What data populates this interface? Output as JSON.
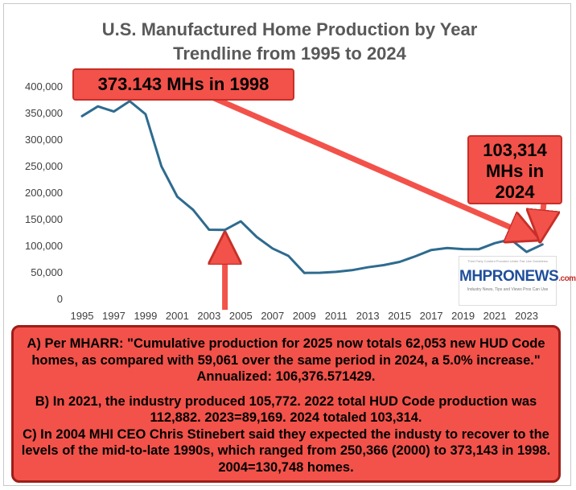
{
  "chart_data": {
    "type": "line",
    "title": [
      "U.S. Manufactured Home Production by Year",
      "Trendline from 1995 to 2024"
    ],
    "xlabel": "",
    "ylabel": "",
    "ylim": [
      0,
      400000
    ],
    "yticks": [
      0,
      50000,
      100000,
      150000,
      200000,
      250000,
      300000,
      350000,
      400000
    ],
    "ytick_labels": [
      "0",
      "50,000",
      "100,000",
      "150,000",
      "200,000",
      "250,000",
      "300,000",
      "350,000",
      "400,000"
    ],
    "xtick_labels": [
      "1995",
      "1997",
      "1999",
      "2001",
      "2003",
      "2005",
      "2007",
      "2009",
      "2011",
      "2013",
      "2015",
      "2017",
      "2019",
      "2021",
      "2023"
    ],
    "x": [
      1995,
      1996,
      1997,
      1998,
      1999,
      2000,
      2001,
      2002,
      2003,
      2004,
      2005,
      2006,
      2007,
      2008,
      2009,
      2010,
      2011,
      2012,
      2013,
      2014,
      2015,
      2016,
      2017,
      2018,
      2019,
      2020,
      2021,
      2022,
      2023,
      2024
    ],
    "series": [
      {
        "name": "",
        "color": "#2e6b8f",
        "values": [
          344930,
          363345,
          353686,
          373143,
          348671,
          250366,
          193229,
          168491,
          131000,
          130748,
          146744,
          117373,
          95752,
          81889,
          49683,
          50046,
          51606,
          54881,
          60228,
          64334,
          70519,
          81136,
          92891,
          96555,
          94615,
          94390,
          105772,
          112882,
          89169,
          103314
        ]
      }
    ],
    "grid": false,
    "legend": "none",
    "annotations": [
      {
        "text": "373.143 MHs in 1998",
        "points_to": {
          "x": 1998,
          "y": 373143
        }
      },
      {
        "text": [
          "103,314",
          "MHs in",
          "2024"
        ],
        "points_to": {
          "x": 2024,
          "y": 103314
        }
      }
    ],
    "arrow_color": "#f2524a"
  },
  "logo": {
    "tagline": "Third Party Content Provided Under Fair Use Guidelines",
    "name_left": "MHPRO",
    "name_right": "NEWS",
    "suffix": ".com",
    "subtitle": "Industry News, Tips and Views Pros Can Use"
  },
  "notes": {
    "a": "A) Per MHARR: \"Cumulative production for 2025 now totals 62,053 new HUD Code homes, as compared with 59,061 over the same period in 2024, a 5.0% increase.\" Annualized: 106,376.571429.",
    "b": "B) In 2021, the industry produced 105,772. 2022 total HUD Code production was 112,882. 2023=89,169. 2024 totaled 103,314.",
    "c": "C) In 2004 MHI CEO Chris Stinebert said they expected the industy to recover to the levels of the mid-to-late 1990s, which ranged from 250,366 (2000) to 373,143 in 1998. 2004=130,748 homes."
  }
}
